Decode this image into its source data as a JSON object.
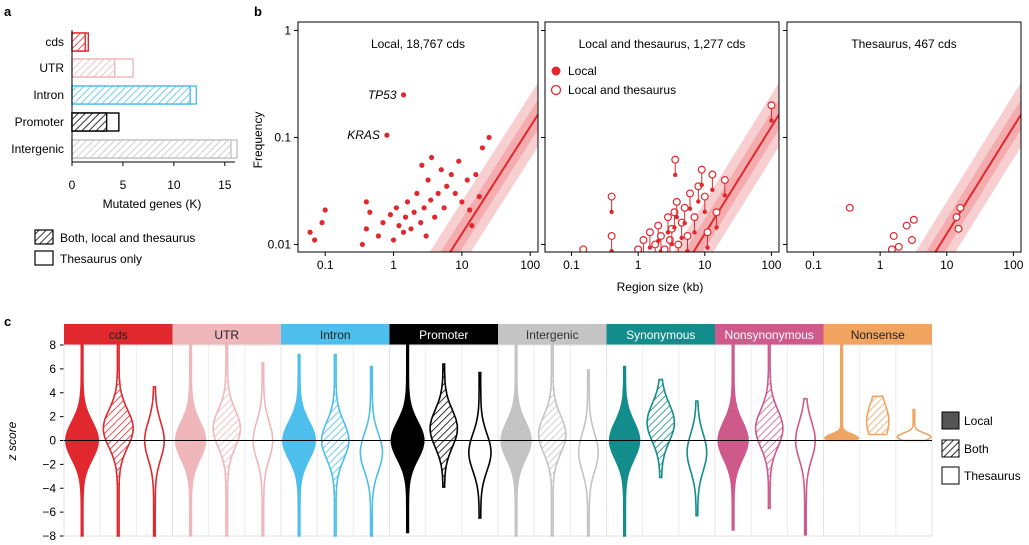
{
  "colors": {
    "cds": "#e0282e",
    "UTR": "#f0b7bb",
    "Intron": "#4ebfec",
    "Promoter": "#000000",
    "Intergenic": "#c4c4c4",
    "Synonymous": "#138d8c",
    "Nonsynonymous": "#cd5a8b",
    "Nonsense": "#f1a460",
    "fit": "#e0282e",
    "band": "#f3a7ab",
    "hline": "#000000"
  },
  "panel_labels": {
    "a": "a",
    "b": "b",
    "c": "c"
  },
  "chart_data": [
    {
      "id": "a",
      "type": "bar",
      "orientation": "horizontal",
      "categories": [
        "cds",
        "UTR",
        "Intron",
        "Promoter",
        "Intergenic"
      ],
      "series": [
        {
          "name": "Both, local and thesaurus",
          "values": [
            1.3,
            4.2,
            11.6,
            3.4,
            15.6
          ]
        },
        {
          "name": "Thesaurus only",
          "values": [
            0.3,
            1.8,
            0.6,
            1.2,
            0.6
          ]
        }
      ],
      "xlabel": "Mutated genes (K)",
      "xlim": [
        0,
        16
      ],
      "xticks": [
        0,
        5,
        10,
        15
      ],
      "xtick_labels": [
        "0",
        "5",
        "10",
        "15"
      ],
      "legend": [
        {
          "label": "Both, local and thesaurus",
          "style": "hatched"
        },
        {
          "label": "Thesaurus only",
          "style": "open"
        }
      ]
    },
    {
      "id": "b",
      "type": "scatter",
      "xscale": "log",
      "yscale": "log",
      "xlim": [
        0.04,
        130
      ],
      "ylim": [
        0.0085,
        1.2
      ],
      "xlabel": "Region size (kb)",
      "ylabel": "Frequency",
      "xticks": [
        0.1,
        1,
        10,
        100
      ],
      "xtick_labels": [
        "0.1",
        "1",
        "10",
        "100"
      ],
      "yticks": [
        0.01,
        0.1,
        1
      ],
      "ytick_labels": [
        "0.01",
        "0.1",
        "1"
      ],
      "fit": {
        "slope": 1.0,
        "intercept_log10": -2.9,
        "band_inner": 0.14,
        "band_outer": 0.3
      },
      "legend": [
        {
          "label": "Local",
          "style": "filled"
        },
        {
          "label": "Local and thesaurus",
          "style": "open"
        }
      ],
      "panels": [
        {
          "title": "Local, 18,767 cds",
          "annotations": [
            {
              "label": "TP53",
              "x": 1.4,
              "y": 0.25
            },
            {
              "label": "KRAS",
              "x": 0.8,
              "y": 0.105
            }
          ],
          "points": [
            {
              "x": 0.06,
              "y": 0.013
            },
            {
              "x": 0.07,
              "y": 0.011
            },
            {
              "x": 0.09,
              "y": 0.016
            },
            {
              "x": 0.1,
              "y": 0.021
            },
            {
              "x": 0.35,
              "y": 0.01
            },
            {
              "x": 0.4,
              "y": 0.014
            },
            {
              "x": 0.4,
              "y": 0.025
            },
            {
              "x": 0.45,
              "y": 0.02
            },
            {
              "x": 0.6,
              "y": 0.012
            },
            {
              "x": 0.7,
              "y": 0.016
            },
            {
              "x": 0.9,
              "y": 0.019
            },
            {
              "x": 1.0,
              "y": 0.011
            },
            {
              "x": 1.1,
              "y": 0.022
            },
            {
              "x": 1.2,
              "y": 0.015
            },
            {
              "x": 1.4,
              "y": 0.013
            },
            {
              "x": 1.5,
              "y": 0.018
            },
            {
              "x": 1.6,
              "y": 0.025
            },
            {
              "x": 1.8,
              "y": 0.014
            },
            {
              "x": 2.0,
              "y": 0.02
            },
            {
              "x": 2.2,
              "y": 0.03
            },
            {
              "x": 2.5,
              "y": 0.016
            },
            {
              "x": 2.8,
              "y": 0.022
            },
            {
              "x": 3.0,
              "y": 0.012
            },
            {
              "x": 3.2,
              "y": 0.04
            },
            {
              "x": 3.5,
              "y": 0.026
            },
            {
              "x": 4.0,
              "y": 0.018
            },
            {
              "x": 4.5,
              "y": 0.03
            },
            {
              "x": 5.0,
              "y": 0.05
            },
            {
              "x": 5.5,
              "y": 0.022
            },
            {
              "x": 6.0,
              "y": 0.035
            },
            {
              "x": 7.0,
              "y": 0.045
            },
            {
              "x": 8.0,
              "y": 0.03
            },
            {
              "x": 9.0,
              "y": 0.06
            },
            {
              "x": 10.0,
              "y": 0.025
            },
            {
              "x": 12.0,
              "y": 0.04
            },
            {
              "x": 13.0,
              "y": 0.021
            },
            {
              "x": 14.0,
              "y": 0.015
            },
            {
              "x": 16.0,
              "y": 0.045
            },
            {
              "x": 18.0,
              "y": 0.028
            },
            {
              "x": 20.0,
              "y": 0.08
            },
            {
              "x": 25.0,
              "y": 0.1
            },
            {
              "x": 3.6,
              "y": 0.065
            },
            {
              "x": 2.6,
              "y": 0.055
            },
            {
              "x": 1.4,
              "y": 0.25
            },
            {
              "x": 0.8,
              "y": 0.105
            }
          ]
        },
        {
          "title": "Local and thesaurus, 1,277 cds",
          "points": [
            {
              "x": 0.15,
              "y": 0.009
            },
            {
              "x": 0.4,
              "y": 0.012
            },
            {
              "x": 0.4,
              "y": 0.028
            },
            {
              "x": 1.0,
              "y": 0.009
            },
            {
              "x": 1.2,
              "y": 0.011
            },
            {
              "x": 1.5,
              "y": 0.013
            },
            {
              "x": 1.8,
              "y": 0.01
            },
            {
              "x": 2.0,
              "y": 0.015
            },
            {
              "x": 2.2,
              "y": 0.012
            },
            {
              "x": 2.5,
              "y": 0.009
            },
            {
              "x": 2.8,
              "y": 0.018
            },
            {
              "x": 3.0,
              "y": 0.011
            },
            {
              "x": 3.2,
              "y": 0.014
            },
            {
              "x": 3.5,
              "y": 0.02
            },
            {
              "x": 3.6,
              "y": 0.062
            },
            {
              "x": 3.8,
              "y": 0.025
            },
            {
              "x": 4.0,
              "y": 0.01
            },
            {
              "x": 4.5,
              "y": 0.016
            },
            {
              "x": 5.0,
              "y": 0.022
            },
            {
              "x": 5.5,
              "y": 0.012
            },
            {
              "x": 6.0,
              "y": 0.03
            },
            {
              "x": 7.0,
              "y": 0.018
            },
            {
              "x": 8.0,
              "y": 0.035
            },
            {
              "x": 9.0,
              "y": 0.05
            },
            {
              "x": 10.0,
              "y": 0.028
            },
            {
              "x": 11.0,
              "y": 0.013
            },
            {
              "x": 13.0,
              "y": 0.045
            },
            {
              "x": 15.0,
              "y": 0.02
            },
            {
              "x": 20.0,
              "y": 0.04
            },
            {
              "x": 100.0,
              "y": 0.2
            }
          ]
        },
        {
          "title": "Thesaurus, 467 cds",
          "points": [
            {
              "x": 0.35,
              "y": 0.022
            },
            {
              "x": 1.5,
              "y": 0.009
            },
            {
              "x": 1.6,
              "y": 0.012
            },
            {
              "x": 1.9,
              "y": 0.0095
            },
            {
              "x": 2.5,
              "y": 0.015
            },
            {
              "x": 3.0,
              "y": 0.011
            },
            {
              "x": 3.2,
              "y": 0.017
            },
            {
              "x": 14.0,
              "y": 0.018
            },
            {
              "x": 15.0,
              "y": 0.014
            },
            {
              "x": 16.0,
              "y": 0.022
            }
          ]
        }
      ]
    },
    {
      "id": "c",
      "type": "violin",
      "ylabel": "z score",
      "ylim": [
        -8,
        8
      ],
      "yticks": [
        -8,
        -6,
        -4,
        -2,
        0,
        2,
        4,
        6,
        8
      ],
      "ytick_labels": [
        "−8",
        "−6",
        "−4",
        "−2",
        "0",
        "2",
        "4",
        "6",
        "8"
      ],
      "legend": [
        {
          "label": "Local",
          "style": "filled"
        },
        {
          "label": "Both",
          "style": "hatched"
        },
        {
          "label": "Thesaurus",
          "style": "open"
        }
      ],
      "variants": [
        "Local",
        "Both",
        "Thesaurus"
      ],
      "groups": [
        {
          "name": "cds",
          "label": "cds",
          "violins": [
            {
              "variant": "Local",
              "min": -8,
              "max": 8,
              "peak": 0,
              "peak_halfwidth": 0.6
            },
            {
              "variant": "Both",
              "min": -8,
              "max": 8,
              "peak": 1,
              "peak_halfwidth": 0.55
            },
            {
              "variant": "Thesaurus",
              "min": -8,
              "max": 4.5,
              "peak": 0,
              "peak_halfwidth": 0.35
            }
          ]
        },
        {
          "name": "UTR",
          "label": "UTR",
          "violins": [
            {
              "variant": "Local",
              "min": -8,
              "max": 8,
              "peak": 0,
              "peak_halfwidth": 0.55
            },
            {
              "variant": "Both",
              "min": -8,
              "max": 8,
              "peak": 1,
              "peak_halfwidth": 0.5
            },
            {
              "variant": "Thesaurus",
              "min": -8,
              "max": 6.5,
              "peak": 0,
              "peak_halfwidth": 0.35
            }
          ]
        },
        {
          "name": "Intron",
          "label": "Intron",
          "violins": [
            {
              "variant": "Local",
              "min": -8,
              "max": 7.2,
              "peak": 0,
              "peak_halfwidth": 0.6
            },
            {
              "variant": "Both",
              "min": -8,
              "max": 7.2,
              "peak": 0,
              "peak_halfwidth": 0.5
            },
            {
              "variant": "Thesaurus",
              "min": -8,
              "max": 6.2,
              "peak": -1,
              "peak_halfwidth": 0.4
            }
          ]
        },
        {
          "name": "Promoter",
          "label": "Promoter",
          "violins": [
            {
              "variant": "Local",
              "min": -7.7,
              "max": 8,
              "peak": 0,
              "peak_halfwidth": 0.6
            },
            {
              "variant": "Both",
              "min": -3.9,
              "max": 6.4,
              "peak": 1,
              "peak_halfwidth": 0.5
            },
            {
              "variant": "Thesaurus",
              "min": -6.5,
              "max": 5.7,
              "peak": -1,
              "peak_halfwidth": 0.4
            }
          ]
        },
        {
          "name": "Intergenic",
          "label": "Intergenic",
          "violins": [
            {
              "variant": "Local",
              "min": -8,
              "max": 8,
              "peak": 0,
              "peak_halfwidth": 0.55
            },
            {
              "variant": "Both",
              "min": -8,
              "max": 8,
              "peak": 0.5,
              "peak_halfwidth": 0.5
            },
            {
              "variant": "Thesaurus",
              "min": -8,
              "max": 5.9,
              "peak": -1,
              "peak_halfwidth": 0.35
            }
          ]
        },
        {
          "name": "Synonymous",
          "label": "Synonymous",
          "violins": [
            {
              "variant": "Local",
              "min": -8,
              "max": 6.2,
              "peak": 0,
              "peak_halfwidth": 0.55
            },
            {
              "variant": "Both",
              "min": -3.1,
              "max": 5.1,
              "peak": 1.5,
              "peak_halfwidth": 0.5
            },
            {
              "variant": "Thesaurus",
              "min": -6.3,
              "max": 3.3,
              "peak": -1,
              "peak_halfwidth": 0.35
            }
          ]
        },
        {
          "name": "Nonsynonymous",
          "label": "Nonsynonymous",
          "violins": [
            {
              "variant": "Local",
              "min": -7.5,
              "max": 8,
              "peak": 0,
              "peak_halfwidth": 0.55
            },
            {
              "variant": "Both",
              "min": -5.7,
              "max": 8,
              "peak": 1,
              "peak_halfwidth": 0.5
            },
            {
              "variant": "Thesaurus",
              "min": -7.9,
              "max": 3.5,
              "peak": 0,
              "peak_halfwidth": 0.35
            }
          ]
        },
        {
          "name": "Nonsense",
          "label": "Nonsense",
          "violins": [
            {
              "variant": "Local",
              "min": 0,
              "max": 8,
              "peak": 0.2,
              "peak_halfwidth": 0.1,
              "shape": "spike"
            },
            {
              "variant": "Both",
              "min": 0.5,
              "max": 3.7,
              "peak": 1.6,
              "peak_halfwidth": 0.4
            },
            {
              "variant": "Thesaurus",
              "min": 0,
              "max": 2.6,
              "peak": 0.3,
              "peak_halfwidth": 0.3,
              "shape": "spike"
            }
          ]
        }
      ]
    }
  ]
}
